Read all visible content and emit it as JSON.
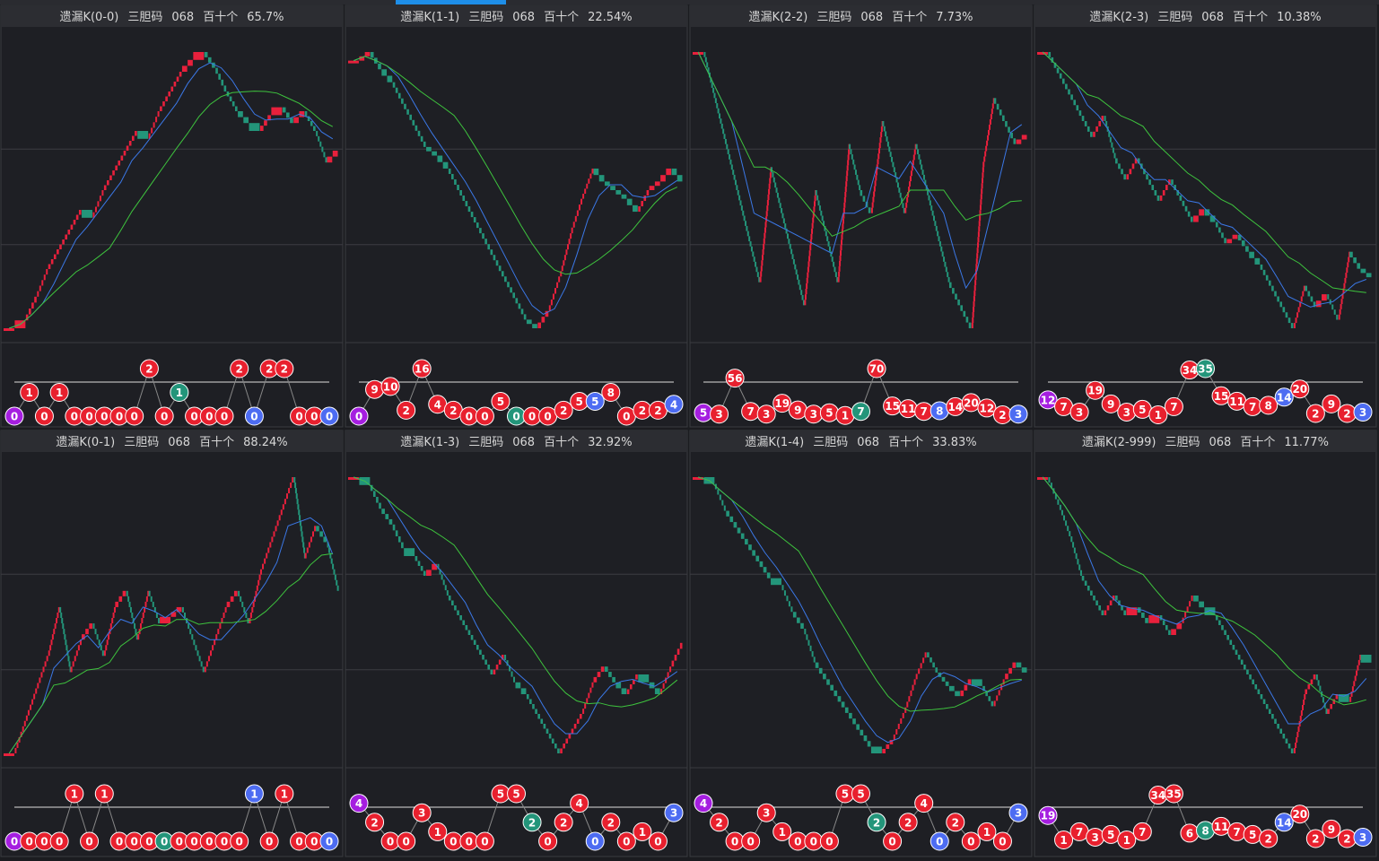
{
  "panels": [
    {
      "title": {
        "name": "遗漏K(0-0)",
        "kind": "三胆码",
        "code": "068",
        "pos": "百十个",
        "rate": "65.7%"
      },
      "values": [
        20,
        22,
        28,
        35,
        40,
        45,
        50,
        48,
        55,
        60,
        65,
        70,
        68,
        75,
        80,
        85,
        88,
        90,
        86,
        80,
        75,
        72,
        70,
        74,
        76,
        72,
        75,
        70,
        62,
        65
      ],
      "bubbles": {
        "values": [
          0,
          1,
          0,
          1,
          0,
          0,
          0,
          0,
          0,
          2,
          0,
          1,
          0,
          0,
          0,
          2,
          0,
          2,
          2,
          0,
          0,
          0
        ],
        "colors": [
          "purple",
          "red",
          "red",
          "red",
          "red",
          "red",
          "red",
          "red",
          "red",
          "red",
          "red",
          "green",
          "red",
          "red",
          "red",
          "red",
          "blue",
          "red",
          "red",
          "red",
          "red",
          "blue"
        ]
      }
    },
    {
      "title": {
        "name": "遗漏K(1-1)",
        "kind": "三胆码",
        "code": "068",
        "pos": "百十个",
        "rate": "22.54%"
      },
      "values": [
        80,
        82,
        78,
        75,
        70,
        65,
        60,
        58,
        55,
        50,
        45,
        40,
        35,
        30,
        25,
        20,
        18,
        22,
        30,
        40,
        48,
        55,
        52,
        50,
        48,
        45,
        50,
        52,
        55,
        52
      ],
      "bubbles": {
        "values": [
          0,
          9,
          10,
          2,
          16,
          4,
          2,
          0,
          0,
          5,
          0,
          0,
          0,
          2,
          5,
          5,
          8,
          0,
          2,
          2,
          4
        ],
        "colors": [
          "purple",
          "red",
          "red",
          "red",
          "red",
          "red",
          "red",
          "red",
          "red",
          "red",
          "green",
          "red",
          "red",
          "red",
          "red",
          "blue",
          "red",
          "red",
          "red",
          "red",
          "blue"
        ]
      }
    },
    {
      "title": {
        "name": "遗漏K(2-2)",
        "kind": "三胆码",
        "code": "068",
        "pos": "百十个",
        "rate": "7.73%"
      },
      "values": [
        70,
        60,
        50,
        40,
        30,
        20,
        45,
        35,
        25,
        15,
        40,
        30,
        20,
        50,
        40,
        35,
        55,
        45,
        35,
        50,
        40,
        30,
        20,
        15,
        10,
        45,
        60,
        55,
        50,
        52
      ],
      "bubbles": {
        "values": [
          5,
          3,
          56,
          7,
          3,
          19,
          9,
          3,
          5,
          1,
          7,
          70,
          15,
          11,
          7,
          8,
          14,
          20,
          12,
          2,
          3
        ],
        "colors": [
          "purple",
          "red",
          "red",
          "red",
          "red",
          "red",
          "red",
          "red",
          "red",
          "red",
          "green",
          "red",
          "red",
          "red",
          "red",
          "blue",
          "red",
          "red",
          "red",
          "red",
          "blue"
        ]
      }
    },
    {
      "title": {
        "name": "遗漏K(2-3)",
        "kind": "三胆码",
        "code": "068",
        "pos": "百十个",
        "rate": "10.38%"
      },
      "values": [
        75,
        70,
        65,
        60,
        55,
        60,
        50,
        45,
        50,
        45,
        40,
        45,
        40,
        35,
        38,
        35,
        30,
        32,
        28,
        25,
        20,
        15,
        10,
        20,
        15,
        18,
        12,
        28,
        24,
        22
      ],
      "bubbles": {
        "values": [
          12,
          7,
          3,
          19,
          9,
          3,
          5,
          1,
          7,
          34,
          35,
          15,
          11,
          7,
          8,
          14,
          20,
          2,
          9,
          2,
          3
        ],
        "colors": [
          "purple",
          "red",
          "red",
          "red",
          "red",
          "red",
          "red",
          "red",
          "red",
          "red",
          "green",
          "red",
          "red",
          "red",
          "red",
          "blue",
          "red",
          "red",
          "red",
          "red",
          "blue"
        ]
      }
    },
    {
      "title": {
        "name": "遗漏K(0-1)",
        "kind": "三胆码",
        "code": "068",
        "pos": "百十个",
        "rate": "88.24%"
      },
      "values": [
        10,
        20,
        30,
        40,
        55,
        35,
        45,
        50,
        40,
        55,
        60,
        45,
        60,
        50,
        52,
        55,
        45,
        35,
        45,
        55,
        60,
        50,
        65,
        75,
        85,
        95,
        70,
        80,
        75,
        60
      ],
      "bubbles": {
        "values": [
          0,
          0,
          0,
          0,
          1,
          0,
          1,
          0,
          0,
          0,
          0,
          0,
          0,
          0,
          0,
          0,
          1,
          0,
          1,
          0,
          0,
          0
        ],
        "colors": [
          "purple",
          "red",
          "red",
          "red",
          "red",
          "red",
          "red",
          "red",
          "red",
          "red",
          "green",
          "red",
          "red",
          "red",
          "red",
          "red",
          "blue",
          "red",
          "red",
          "red",
          "red",
          "blue"
        ]
      }
    },
    {
      "title": {
        "name": "遗漏K(1-3)",
        "kind": "三胆码",
        "code": "068",
        "pos": "百十个",
        "rate": "32.92%"
      },
      "values": [
        80,
        78,
        72,
        68,
        62,
        60,
        55,
        58,
        50,
        45,
        40,
        35,
        30,
        35,
        28,
        25,
        20,
        15,
        10,
        15,
        20,
        28,
        32,
        28,
        25,
        30,
        28,
        25,
        32,
        38
      ],
      "bubbles": {
        "values": [
          4,
          2,
          0,
          0,
          3,
          1,
          0,
          0,
          0,
          5,
          5,
          2,
          0,
          2,
          4,
          0,
          2,
          0,
          1,
          0,
          3
        ],
        "colors": [
          "purple",
          "red",
          "red",
          "red",
          "red",
          "red",
          "red",
          "red",
          "red",
          "red",
          "red",
          "green",
          "red",
          "red",
          "red",
          "blue",
          "red",
          "red",
          "red",
          "red",
          "blue"
        ]
      }
    },
    {
      "title": {
        "name": "遗漏K(1-4)",
        "kind": "三胆码",
        "code": "068",
        "pos": "百十个",
        "rate": "33.83%"
      },
      "values": [
        90,
        88,
        80,
        75,
        70,
        65,
        60,
        58,
        50,
        45,
        35,
        30,
        25,
        20,
        15,
        10,
        8,
        12,
        20,
        30,
        38,
        32,
        28,
        25,
        30,
        28,
        22,
        30,
        35,
        32
      ],
      "bubbles": {
        "values": [
          4,
          2,
          0,
          0,
          3,
          1,
          0,
          0,
          0,
          5,
          5,
          2,
          0,
          2,
          4,
          0,
          2,
          0,
          1,
          0,
          3
        ],
        "colors": [
          "purple",
          "red",
          "red",
          "red",
          "red",
          "red",
          "red",
          "red",
          "red",
          "red",
          "red",
          "green",
          "red",
          "red",
          "red",
          "blue",
          "red",
          "red",
          "red",
          "red",
          "blue"
        ]
      }
    },
    {
      "title": {
        "name": "遗漏K(2-999)",
        "kind": "三胆码",
        "code": "068",
        "pos": "百十个",
        "rate": "11.77%"
      },
      "values": [
        85,
        78,
        70,
        60,
        55,
        50,
        55,
        50,
        52,
        48,
        50,
        45,
        48,
        55,
        52,
        50,
        45,
        40,
        35,
        30,
        25,
        20,
        15,
        30,
        35,
        25,
        30,
        28,
        40,
        38
      ],
      "bubbles": {
        "values": [
          19,
          1,
          7,
          3,
          5,
          1,
          7,
          34,
          35,
          6,
          8,
          11,
          7,
          5,
          2,
          14,
          20,
          2,
          9,
          2,
          3
        ],
        "colors": [
          "purple",
          "red",
          "red",
          "red",
          "red",
          "red",
          "red",
          "red",
          "red",
          "red",
          "green",
          "red",
          "red",
          "red",
          "red",
          "blue",
          "red",
          "red",
          "red",
          "red",
          "blue"
        ]
      }
    }
  ]
}
